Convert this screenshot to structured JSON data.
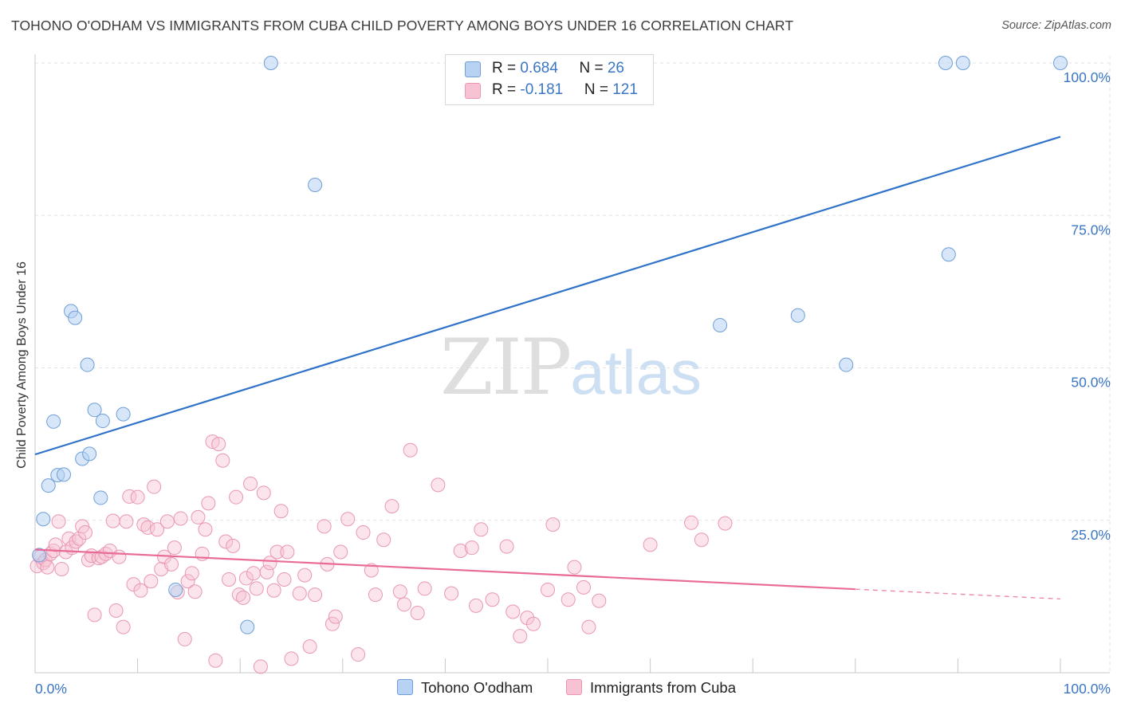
{
  "title": "TOHONO O'ODHAM VS IMMIGRANTS FROM CUBA CHILD POVERTY AMONG BOYS UNDER 16 CORRELATION CHART",
  "source": "Source: ZipAtlas.com",
  "watermark": {
    "zip": "ZIP",
    "atlas": "atlas"
  },
  "legend": {
    "rows": [
      {
        "r_label": "R = ",
        "r_value": "0.684",
        "n_label": "N = ",
        "n_value": "26"
      },
      {
        "r_label": "R = ",
        "r_value": "-0.181",
        "n_label": "N = ",
        "n_value": "121"
      }
    ]
  },
  "colors": {
    "series_a_fill": "#b7d2f3",
    "series_a_stroke": "#6f9fd8",
    "series_a_line": "#2f73c8",
    "series_b_fill": "#f7c3d3",
    "series_b_stroke": "#e997b2",
    "series_b_line": "#e96b98",
    "axis_text": "#3a76c4",
    "grid": "#e4e4e4"
  },
  "chart_data": {
    "type": "scatter",
    "title": "TOHONO O'ODHAM VS IMMIGRANTS FROM CUBA CHILD POVERTY AMONG BOYS UNDER 16 CORRELATION CHART",
    "xlabel": "",
    "ylabel": "Child Poverty Among Boys Under 16",
    "xlim": [
      0,
      100
    ],
    "ylim": [
      0,
      100
    ],
    "x_tick_labels": [
      "0.0%",
      "100.0%"
    ],
    "y_tick_values": [
      25,
      50,
      75,
      100
    ],
    "y_tick_labels": [
      "25.0%",
      "50.0%",
      "75.0%",
      "100.0%"
    ],
    "grid": true,
    "legend_position": "top-center and bottom",
    "series": [
      {
        "name": "Tohono O'odham",
        "r": 0.684,
        "n": 26,
        "trend": {
          "x": [
            0,
            100
          ],
          "y": [
            35.8,
            87.9
          ]
        },
        "points": [
          [
            0.4,
            19.3
          ],
          [
            0.8,
            25.2
          ],
          [
            1.3,
            30.7
          ],
          [
            1.8,
            41.2
          ],
          [
            2.2,
            32.4
          ],
          [
            2.8,
            32.5
          ],
          [
            3.5,
            59.3
          ],
          [
            3.9,
            58.2
          ],
          [
            4.6,
            35.1
          ],
          [
            5.1,
            50.5
          ],
          [
            5.3,
            35.9
          ],
          [
            5.8,
            43.1
          ],
          [
            6.4,
            28.7
          ],
          [
            6.6,
            41.3
          ],
          [
            8.6,
            42.4
          ],
          [
            13.7,
            13.6
          ],
          [
            20.7,
            7.5
          ],
          [
            23.0,
            100.0
          ],
          [
            27.3,
            80.0
          ],
          [
            66.8,
            57.0
          ],
          [
            74.4,
            58.6
          ],
          [
            79.1,
            50.5
          ],
          [
            88.8,
            100.0
          ],
          [
            89.1,
            68.6
          ],
          [
            90.5,
            100.0
          ],
          [
            100.0,
            100.0
          ]
        ]
      },
      {
        "name": "Immigrants from Cuba",
        "r": -0.181,
        "n": 121,
        "trend": {
          "x": [
            0,
            80
          ],
          "y": [
            20.2,
            13.7
          ]
        },
        "trend_dashed": {
          "x": [
            80,
            100
          ],
          "y": [
            13.7,
            12.1
          ]
        },
        "points": [
          [
            0.2,
            17.5
          ],
          [
            0.5,
            19.0
          ],
          [
            0.8,
            18.0
          ],
          [
            1.0,
            18.5
          ],
          [
            1.2,
            17.3
          ],
          [
            1.5,
            19.5
          ],
          [
            1.8,
            20.0
          ],
          [
            2.0,
            21.0
          ],
          [
            2.3,
            24.8
          ],
          [
            2.6,
            17.0
          ],
          [
            3.0,
            19.8
          ],
          [
            3.3,
            22.0
          ],
          [
            3.6,
            20.5
          ],
          [
            4.0,
            21.5
          ],
          [
            4.3,
            22.0
          ],
          [
            4.6,
            24.0
          ],
          [
            4.9,
            23.0
          ],
          [
            5.2,
            18.5
          ],
          [
            5.5,
            19.2
          ],
          [
            5.8,
            9.5
          ],
          [
            6.2,
            18.8
          ],
          [
            6.5,
            19.0
          ],
          [
            6.9,
            19.5
          ],
          [
            7.3,
            20.0
          ],
          [
            7.6,
            24.9
          ],
          [
            7.9,
            10.2
          ],
          [
            8.2,
            19.0
          ],
          [
            8.6,
            7.5
          ],
          [
            8.9,
            24.8
          ],
          [
            9.2,
            28.9
          ],
          [
            9.6,
            14.5
          ],
          [
            10.0,
            28.8
          ],
          [
            10.3,
            13.5
          ],
          [
            10.6,
            24.3
          ],
          [
            11.0,
            23.8
          ],
          [
            11.3,
            15.0
          ],
          [
            11.6,
            30.5
          ],
          [
            11.9,
            23.5
          ],
          [
            12.3,
            17.0
          ],
          [
            12.6,
            19.0
          ],
          [
            12.9,
            24.8
          ],
          [
            13.3,
            17.8
          ],
          [
            13.6,
            20.5
          ],
          [
            13.9,
            13.2
          ],
          [
            14.2,
            25.3
          ],
          [
            14.6,
            5.5
          ],
          [
            14.9,
            15.0
          ],
          [
            15.3,
            16.3
          ],
          [
            15.6,
            13.3
          ],
          [
            15.9,
            25.5
          ],
          [
            16.3,
            19.5
          ],
          [
            16.6,
            23.5
          ],
          [
            16.9,
            27.8
          ],
          [
            17.3,
            37.9
          ],
          [
            17.6,
            2.0
          ],
          [
            17.9,
            37.5
          ],
          [
            18.3,
            34.8
          ],
          [
            18.6,
            21.5
          ],
          [
            18.9,
            15.3
          ],
          [
            19.3,
            20.8
          ],
          [
            19.6,
            28.8
          ],
          [
            19.9,
            12.8
          ],
          [
            20.3,
            12.3
          ],
          [
            20.6,
            15.5
          ],
          [
            21.0,
            31.0
          ],
          [
            21.3,
            16.3
          ],
          [
            21.6,
            13.8
          ],
          [
            22.0,
            1.0
          ],
          [
            22.3,
            29.5
          ],
          [
            22.6,
            16.5
          ],
          [
            22.9,
            18.0
          ],
          [
            23.3,
            13.5
          ],
          [
            23.6,
            19.8
          ],
          [
            24.0,
            26.5
          ],
          [
            24.3,
            15.3
          ],
          [
            24.6,
            19.8
          ],
          [
            25.0,
            2.3
          ],
          [
            25.8,
            13.0
          ],
          [
            26.3,
            16.0
          ],
          [
            26.8,
            4.3
          ],
          [
            27.3,
            12.8
          ],
          [
            28.2,
            24.0
          ],
          [
            28.5,
            17.8
          ],
          [
            29.0,
            8.0
          ],
          [
            29.3,
            9.2
          ],
          [
            29.8,
            19.8
          ],
          [
            30.5,
            25.2
          ],
          [
            31.5,
            3.0
          ],
          [
            32.0,
            23.0
          ],
          [
            32.8,
            16.8
          ],
          [
            33.2,
            12.8
          ],
          [
            34.0,
            21.8
          ],
          [
            34.8,
            27.3
          ],
          [
            35.6,
            13.3
          ],
          [
            36.0,
            11.2
          ],
          [
            36.6,
            36.5
          ],
          [
            37.3,
            9.8
          ],
          [
            38.0,
            13.8
          ],
          [
            39.3,
            30.8
          ],
          [
            40.6,
            13.0
          ],
          [
            41.5,
            20.0
          ],
          [
            42.6,
            20.5
          ],
          [
            43.0,
            11.0
          ],
          [
            43.5,
            23.5
          ],
          [
            44.6,
            12.0
          ],
          [
            46.0,
            20.7
          ],
          [
            46.6,
            10.0
          ],
          [
            47.3,
            6.0
          ],
          [
            48.0,
            9.0
          ],
          [
            48.6,
            8.0
          ],
          [
            50.0,
            13.6
          ],
          [
            50.5,
            24.3
          ],
          [
            52.0,
            12.0
          ],
          [
            52.6,
            17.3
          ],
          [
            53.5,
            14.0
          ],
          [
            54.0,
            7.5
          ],
          [
            55.0,
            11.8
          ],
          [
            60.0,
            21.0
          ],
          [
            64.0,
            24.6
          ],
          [
            65.0,
            21.8
          ],
          [
            67.3,
            24.5
          ]
        ]
      }
    ]
  }
}
